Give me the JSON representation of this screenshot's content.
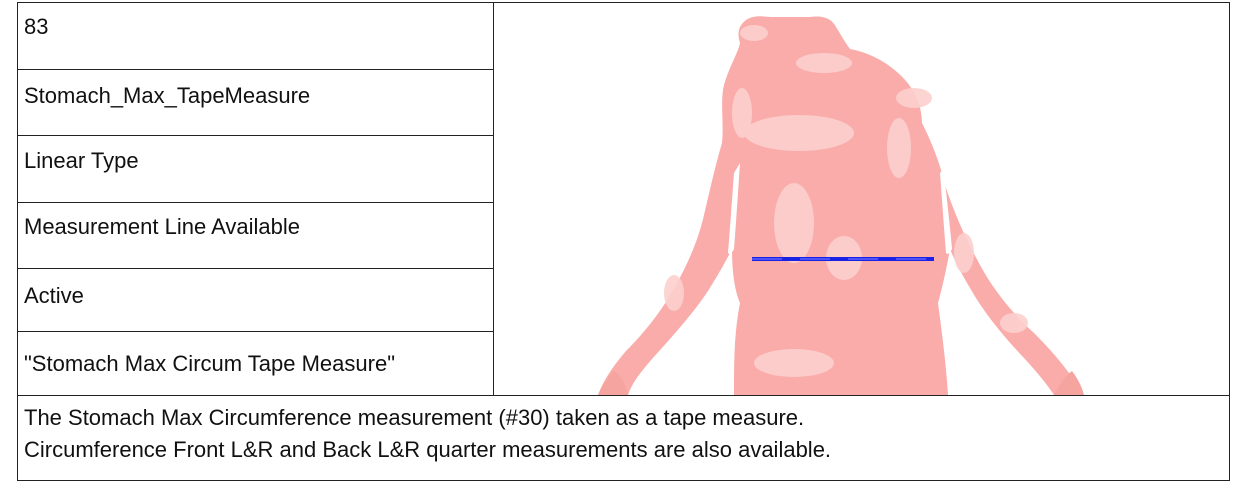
{
  "fields": {
    "id": "83",
    "name": "Stomach_Max_TapeMeasure",
    "type": "Linear Type",
    "line_availability": "Measurement Line Available",
    "status": "Active",
    "label": "\"Stomach Max Circum Tape Measure\""
  },
  "figure": {
    "body_icon": "body-mannequin-icon",
    "body_color": "#f9aca9",
    "highlight_color": "#fcd0ce",
    "measure_line_color": "#1a22e6"
  },
  "description": {
    "line1": "The Stomach Max Circumference measurement (#30) taken as a tape measure.",
    "line2": "Circumference Front L&R and Back L&R quarter measurements are also available."
  }
}
